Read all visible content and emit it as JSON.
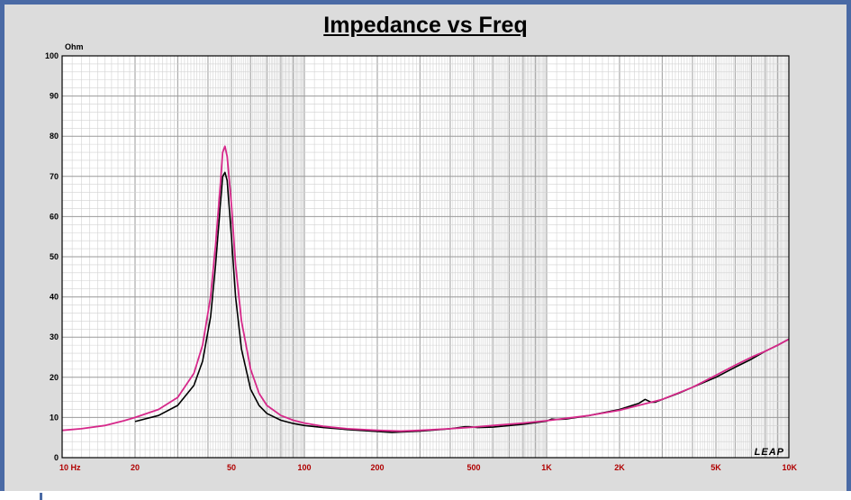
{
  "chart_data": {
    "type": "line",
    "title": "Impedance vs Freq",
    "ylabel": "Ohm",
    "xlabel": "",
    "x_scale": "log",
    "xlim": [
      10,
      10000
    ],
    "ylim": [
      0,
      100
    ],
    "grid": true,
    "x_ticks": [
      {
        "value": 10,
        "label": "10  Hz"
      },
      {
        "value": 20,
        "label": "20"
      },
      {
        "value": 50,
        "label": "50"
      },
      {
        "value": 100,
        "label": "100"
      },
      {
        "value": 200,
        "label": "200"
      },
      {
        "value": 500,
        "label": "500"
      },
      {
        "value": 1000,
        "label": "1K"
      },
      {
        "value": 2000,
        "label": "2K"
      },
      {
        "value": 5000,
        "label": "5K"
      },
      {
        "value": 10000,
        "label": "10K"
      }
    ],
    "y_ticks": [
      {
        "value": 0,
        "label": "0"
      },
      {
        "value": 10,
        "label": "10"
      },
      {
        "value": 20,
        "label": "20"
      },
      {
        "value": 30,
        "label": "30"
      },
      {
        "value": 40,
        "label": "40"
      },
      {
        "value": 50,
        "label": "50"
      },
      {
        "value": 60,
        "label": "60"
      },
      {
        "value": 70,
        "label": "70"
      },
      {
        "value": 80,
        "label": "80"
      },
      {
        "value": 90,
        "label": "90"
      },
      {
        "value": 100,
        "label": "100"
      }
    ],
    "watermark": "LEAP",
    "series": [
      {
        "color": "#000000",
        "x": [
          20,
          25,
          30,
          35,
          38,
          41,
          43,
          45,
          46,
          47,
          48,
          50,
          52,
          55,
          60,
          65,
          70,
          80,
          90,
          100,
          120,
          150,
          200,
          230,
          300,
          400,
          460,
          480,
          520,
          600,
          800,
          1000,
          1050,
          1100,
          1200,
          1500,
          2000,
          2400,
          2550,
          2700,
          2800,
          3000,
          3500,
          4000,
          5000,
          6000,
          7000,
          8000,
          9000,
          10000
        ],
        "y": [
          9,
          10.5,
          13,
          18,
          24,
          35,
          48,
          63,
          70,
          71,
          69,
          55,
          40,
          27,
          17,
          13,
          11,
          9.3,
          8.5,
          8,
          7.5,
          7,
          6.5,
          6.3,
          6.6,
          7.2,
          7.7,
          7.7,
          7.5,
          7.6,
          8.3,
          9.1,
          9.6,
          9.5,
          9.6,
          10.5,
          12,
          13.5,
          14.5,
          13.8,
          13.8,
          14.5,
          16,
          17.5,
          20,
          22.5,
          24.5,
          26.5,
          28,
          29.5
        ]
      },
      {
        "color": "#d6288a",
        "x": [
          10,
          12,
          15,
          18,
          20,
          25,
          30,
          35,
          38,
          41,
          43,
          45,
          46,
          47,
          48,
          50,
          52,
          55,
          60,
          65,
          70,
          80,
          90,
          100,
          120,
          150,
          200,
          250,
          300,
          400,
          500,
          600,
          800,
          1000,
          1500,
          2000,
          3000,
          4000,
          5000,
          6000,
          7000,
          8000,
          9000,
          10000
        ],
        "y": [
          6.8,
          7.2,
          8,
          9.2,
          10,
          12,
          15,
          21,
          28,
          40,
          53,
          68,
          76,
          77.5,
          75,
          63,
          48,
          34,
          22,
          16,
          13,
          10.5,
          9.3,
          8.6,
          7.8,
          7.2,
          6.8,
          6.6,
          6.8,
          7.2,
          7.6,
          8,
          8.6,
          9.2,
          10.5,
          11.8,
          14.5,
          17.5,
          20.5,
          23,
          25,
          26.5,
          28,
          29.5
        ]
      }
    ]
  }
}
